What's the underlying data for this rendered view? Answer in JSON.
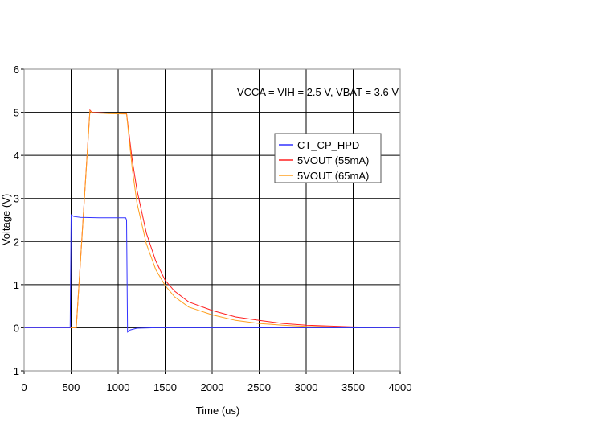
{
  "chart_data": {
    "type": "line",
    "title": "",
    "annotation": "VCCA = VIH = 2.5 V, VBAT = 3.6 V",
    "xlabel": "Time (us)",
    "ylabel": "Voltage (V)",
    "xlim": [
      0,
      4000
    ],
    "ylim": [
      -1,
      6
    ],
    "xticks": [
      0,
      500,
      1000,
      1500,
      2000,
      2500,
      3000,
      3500,
      4000
    ],
    "yticks": [
      -1,
      0,
      1,
      2,
      3,
      4,
      5,
      6
    ],
    "grid": true,
    "legend_position": "upper-right",
    "series": [
      {
        "name": "CT_CP_HPD",
        "color": "#3333ff",
        "points": [
          [
            0,
            0
          ],
          [
            480,
            0
          ],
          [
            490,
            0
          ],
          [
            500,
            2.62
          ],
          [
            530,
            2.58
          ],
          [
            600,
            2.56
          ],
          [
            800,
            2.55
          ],
          [
            1080,
            2.55
          ],
          [
            1090,
            2.5
          ],
          [
            1100,
            -0.1
          ],
          [
            1130,
            -0.05
          ],
          [
            1200,
            -0.01
          ],
          [
            1400,
            0
          ],
          [
            4000,
            0
          ]
        ]
      },
      {
        "name": "5VOUT (55mA)",
        "color": "#ff2020",
        "points": [
          [
            0,
            0
          ],
          [
            500,
            0
          ],
          [
            555,
            0
          ],
          [
            700,
            5.05
          ],
          [
            720,
            5.0
          ],
          [
            900,
            4.98
          ],
          [
            1090,
            4.97
          ],
          [
            1150,
            3.9
          ],
          [
            1200,
            3.2
          ],
          [
            1300,
            2.2
          ],
          [
            1400,
            1.55
          ],
          [
            1500,
            1.1
          ],
          [
            1600,
            0.85
          ],
          [
            1750,
            0.6
          ],
          [
            2000,
            0.4
          ],
          [
            2250,
            0.25
          ],
          [
            2500,
            0.17
          ],
          [
            2750,
            0.1
          ],
          [
            3000,
            0.06
          ],
          [
            3500,
            0.02
          ],
          [
            4000,
            0
          ]
        ]
      },
      {
        "name": "5VOUT (65mA)",
        "color": "#ffa020",
        "points": [
          [
            0,
            0
          ],
          [
            500,
            0
          ],
          [
            555,
            0
          ],
          [
            700,
            5.03
          ],
          [
            720,
            4.99
          ],
          [
            900,
            4.97
          ],
          [
            1090,
            4.96
          ],
          [
            1150,
            3.7
          ],
          [
            1200,
            2.9
          ],
          [
            1300,
            1.95
          ],
          [
            1400,
            1.35
          ],
          [
            1500,
            0.98
          ],
          [
            1600,
            0.72
          ],
          [
            1750,
            0.48
          ],
          [
            2000,
            0.3
          ],
          [
            2250,
            0.17
          ],
          [
            2500,
            0.1
          ],
          [
            2750,
            0.06
          ],
          [
            3000,
            0.03
          ],
          [
            3500,
            0.01
          ],
          [
            4000,
            0
          ]
        ]
      }
    ]
  }
}
